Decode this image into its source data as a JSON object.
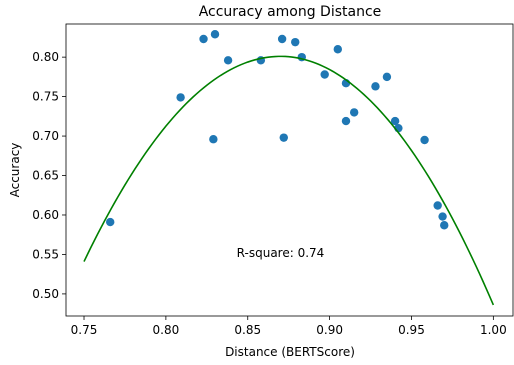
{
  "chart_data": {
    "type": "scatter",
    "title": "Accuracy among Distance",
    "xlabel": "Distance (BERTScore)",
    "ylabel": "Accuracy",
    "xlim": [
      0.739,
      1.012
    ],
    "ylim": [
      0.472,
      0.842
    ],
    "x_ticks": [
      0.75,
      0.8,
      0.85,
      0.9,
      0.95,
      1.0
    ],
    "x_tick_labels": [
      "0.75",
      "0.80",
      "0.85",
      "0.90",
      "0.95",
      "1.00"
    ],
    "y_ticks": [
      0.5,
      0.55,
      0.6,
      0.65,
      0.7,
      0.75,
      0.8
    ],
    "y_tick_labels": [
      "0.50",
      "0.55",
      "0.60",
      "0.65",
      "0.70",
      "0.75",
      "0.80"
    ],
    "grid": false,
    "annotation": "R-square: 0.74",
    "annotation_position": [
      0.87,
      0.552
    ],
    "points": [
      {
        "x": 0.766,
        "y": 0.591
      },
      {
        "x": 0.809,
        "y": 0.749
      },
      {
        "x": 0.823,
        "y": 0.823
      },
      {
        "x": 0.829,
        "y": 0.696
      },
      {
        "x": 0.83,
        "y": 0.829
      },
      {
        "x": 0.838,
        "y": 0.796
      },
      {
        "x": 0.858,
        "y": 0.796
      },
      {
        "x": 0.871,
        "y": 0.823
      },
      {
        "x": 0.872,
        "y": 0.698
      },
      {
        "x": 0.879,
        "y": 0.819
      },
      {
        "x": 0.883,
        "y": 0.8
      },
      {
        "x": 0.897,
        "y": 0.778
      },
      {
        "x": 0.905,
        "y": 0.81
      },
      {
        "x": 0.91,
        "y": 0.767
      },
      {
        "x": 0.91,
        "y": 0.719
      },
      {
        "x": 0.915,
        "y": 0.73
      },
      {
        "x": 0.928,
        "y": 0.763
      },
      {
        "x": 0.935,
        "y": 0.775
      },
      {
        "x": 0.94,
        "y": 0.719
      },
      {
        "x": 0.942,
        "y": 0.71
      },
      {
        "x": 0.958,
        "y": 0.695
      },
      {
        "x": 0.966,
        "y": 0.612
      },
      {
        "x": 0.969,
        "y": 0.598
      },
      {
        "x": 0.97,
        "y": 0.587
      }
    ],
    "fit_curve": {
      "type": "quadratic",
      "vertex_x": 0.87,
      "vertex_y": 0.801,
      "x_range": [
        0.75,
        1.0
      ],
      "y_at_left": 0.541,
      "y_at_right": 0.486
    },
    "colors": {
      "points": "#1f77b4",
      "fit_line": "#008000",
      "axes": "#000000",
      "background": "#ffffff"
    }
  }
}
